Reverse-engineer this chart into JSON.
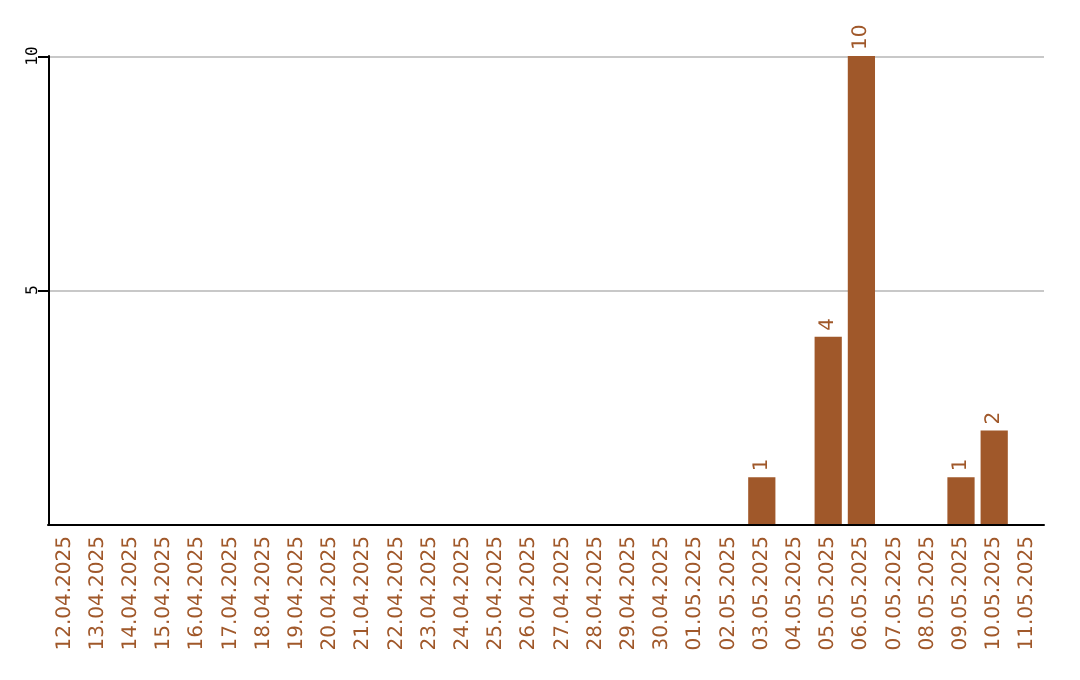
{
  "chart_data": {
    "type": "bar",
    "categories": [
      "12.04.2025",
      "13.04.2025",
      "14.04.2025",
      "15.04.2025",
      "16.04.2025",
      "17.04.2025",
      "18.04.2025",
      "19.04.2025",
      "20.04.2025",
      "21.04.2025",
      "22.04.2025",
      "23.04.2025",
      "24.04.2025",
      "25.04.2025",
      "26.04.2025",
      "27.04.2025",
      "28.04.2025",
      "29.04.2025",
      "30.04.2025",
      "01.05.2025",
      "02.05.2025",
      "03.05.2025",
      "04.05.2025",
      "05.05.2025",
      "06.05.2025",
      "07.05.2025",
      "08.05.2025",
      "09.05.2025",
      "10.05.2025",
      "11.05.2025"
    ],
    "values": [
      0,
      0,
      0,
      0,
      0,
      0,
      0,
      0,
      0,
      0,
      0,
      0,
      0,
      0,
      0,
      0,
      0,
      0,
      0,
      0,
      0,
      1,
      0,
      4,
      10,
      0,
      0,
      1,
      2,
      0
    ],
    "value_labels": [
      null,
      null,
      null,
      null,
      null,
      null,
      null,
      null,
      null,
      null,
      null,
      null,
      null,
      null,
      null,
      null,
      null,
      null,
      null,
      null,
      null,
      "1",
      null,
      "4",
      "10",
      null,
      null,
      "1",
      "2",
      null
    ],
    "color": "#a0582a",
    "ylim": [
      0,
      10
    ],
    "yticks": [
      5,
      10
    ],
    "grid": "y"
  }
}
